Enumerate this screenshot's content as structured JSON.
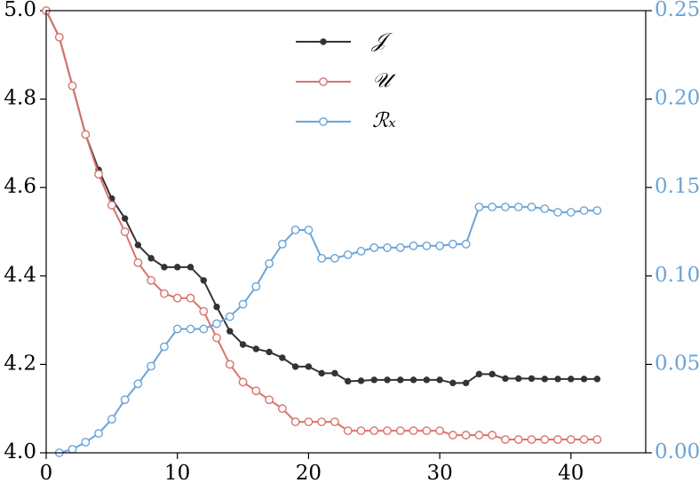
{
  "chart_data": {
    "type": "line",
    "x": [
      0,
      1,
      2,
      3,
      4,
      5,
      6,
      7,
      8,
      9,
      10,
      11,
      12,
      13,
      14,
      15,
      16,
      17,
      18,
      19,
      20,
      21,
      22,
      23,
      24,
      25,
      26,
      27,
      28,
      29,
      30,
      31,
      32,
      33,
      34,
      35,
      36,
      37,
      38,
      39,
      40,
      41,
      42
    ],
    "series": [
      {
        "name": "𝒥",
        "color": "#333333",
        "marker": "filled",
        "values": [
          5.0,
          4.94,
          4.83,
          4.72,
          4.64,
          4.575,
          4.53,
          4.47,
          4.44,
          4.42,
          4.42,
          4.42,
          4.39,
          4.33,
          4.275,
          4.245,
          4.235,
          4.228,
          4.215,
          4.195,
          4.195,
          4.18,
          4.18,
          4.162,
          4.163,
          4.165,
          4.165,
          4.165,
          4.165,
          4.165,
          4.165,
          4.158,
          4.158,
          4.178,
          4.178,
          4.168,
          4.168,
          4.168,
          4.167,
          4.167,
          4.167,
          4.167,
          4.167
        ]
      },
      {
        "name": "𝒰",
        "color": "#d9736d",
        "marker": "hollow",
        "values": [
          5.0,
          4.94,
          4.83,
          4.72,
          4.63,
          4.56,
          4.5,
          4.43,
          4.39,
          4.36,
          4.35,
          4.35,
          4.32,
          4.26,
          4.2,
          4.16,
          4.14,
          4.12,
          4.1,
          4.07,
          4.07,
          4.07,
          4.07,
          4.05,
          4.05,
          4.05,
          4.05,
          4.05,
          4.05,
          4.05,
          4.05,
          4.04,
          4.04,
          4.04,
          4.04,
          4.03,
          4.03,
          4.03,
          4.03,
          4.03,
          4.03,
          4.03,
          4.03
        ]
      },
      {
        "name": "ℛₓ",
        "color": "#6aa4d8",
        "marker": "hollow",
        "axis": "y2",
        "values": [
          null,
          0.0,
          0.002,
          0.006,
          0.011,
          0.019,
          0.03,
          0.039,
          0.049,
          0.06,
          0.07,
          0.07,
          0.07,
          0.073,
          0.077,
          0.084,
          0.094,
          0.107,
          0.118,
          0.126,
          0.126,
          0.11,
          0.11,
          0.112,
          0.114,
          0.116,
          0.116,
          0.116,
          0.117,
          0.117,
          0.117,
          0.118,
          0.118,
          0.139,
          0.139,
          0.139,
          0.139,
          0.139,
          0.138,
          0.136,
          0.136,
          0.137,
          0.137
        ]
      }
    ],
    "xlim": [
      0,
      45.7
    ],
    "xticks": [
      0,
      10,
      20,
      30,
      40
    ],
    "ylim": [
      4.0,
      5.0
    ],
    "yticks": [
      {
        "value": 4.0,
        "label": "4.0"
      },
      4.2,
      4.4,
      4.6,
      4.8,
      {
        "value": 5.0,
        "label": "5.0"
      }
    ],
    "y2lim": [
      0,
      0.25
    ],
    "y2ticks": [
      {
        "value": 0,
        "label": "0.00"
      },
      0.05,
      {
        "value": 0.1,
        "label": "0.10"
      },
      0.15,
      {
        "value": 0.2,
        "label": "0.20"
      },
      0.25
    ],
    "y2color": "#6aa4d8",
    "legend": "upper center"
  }
}
